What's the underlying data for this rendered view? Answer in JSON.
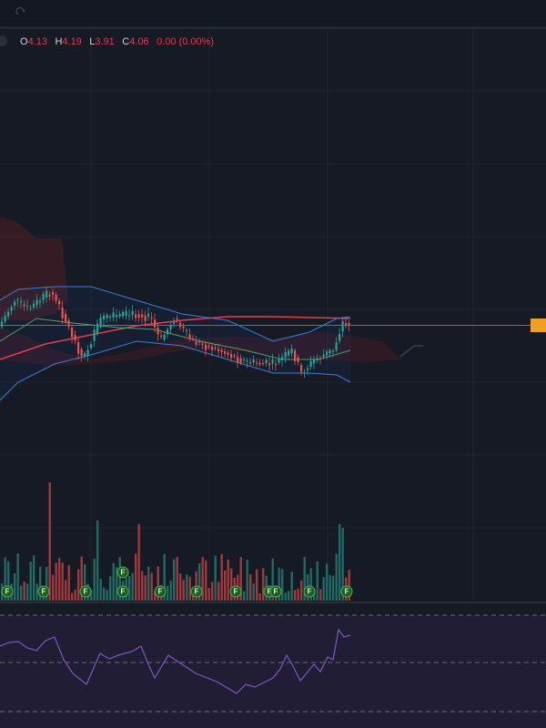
{
  "legend": {
    "open_key": "O",
    "open": "4.13",
    "high_key": "H",
    "high": "4.19",
    "low_key": "L",
    "low": "3.91",
    "close_key": "C",
    "close": "4.06",
    "change": "0.00 (0.00%)"
  },
  "markers": [
    "F",
    "F",
    "F",
    "F",
    "F",
    "F",
    "F",
    "F",
    "F",
    "F",
    "F",
    "F"
  ]
}
